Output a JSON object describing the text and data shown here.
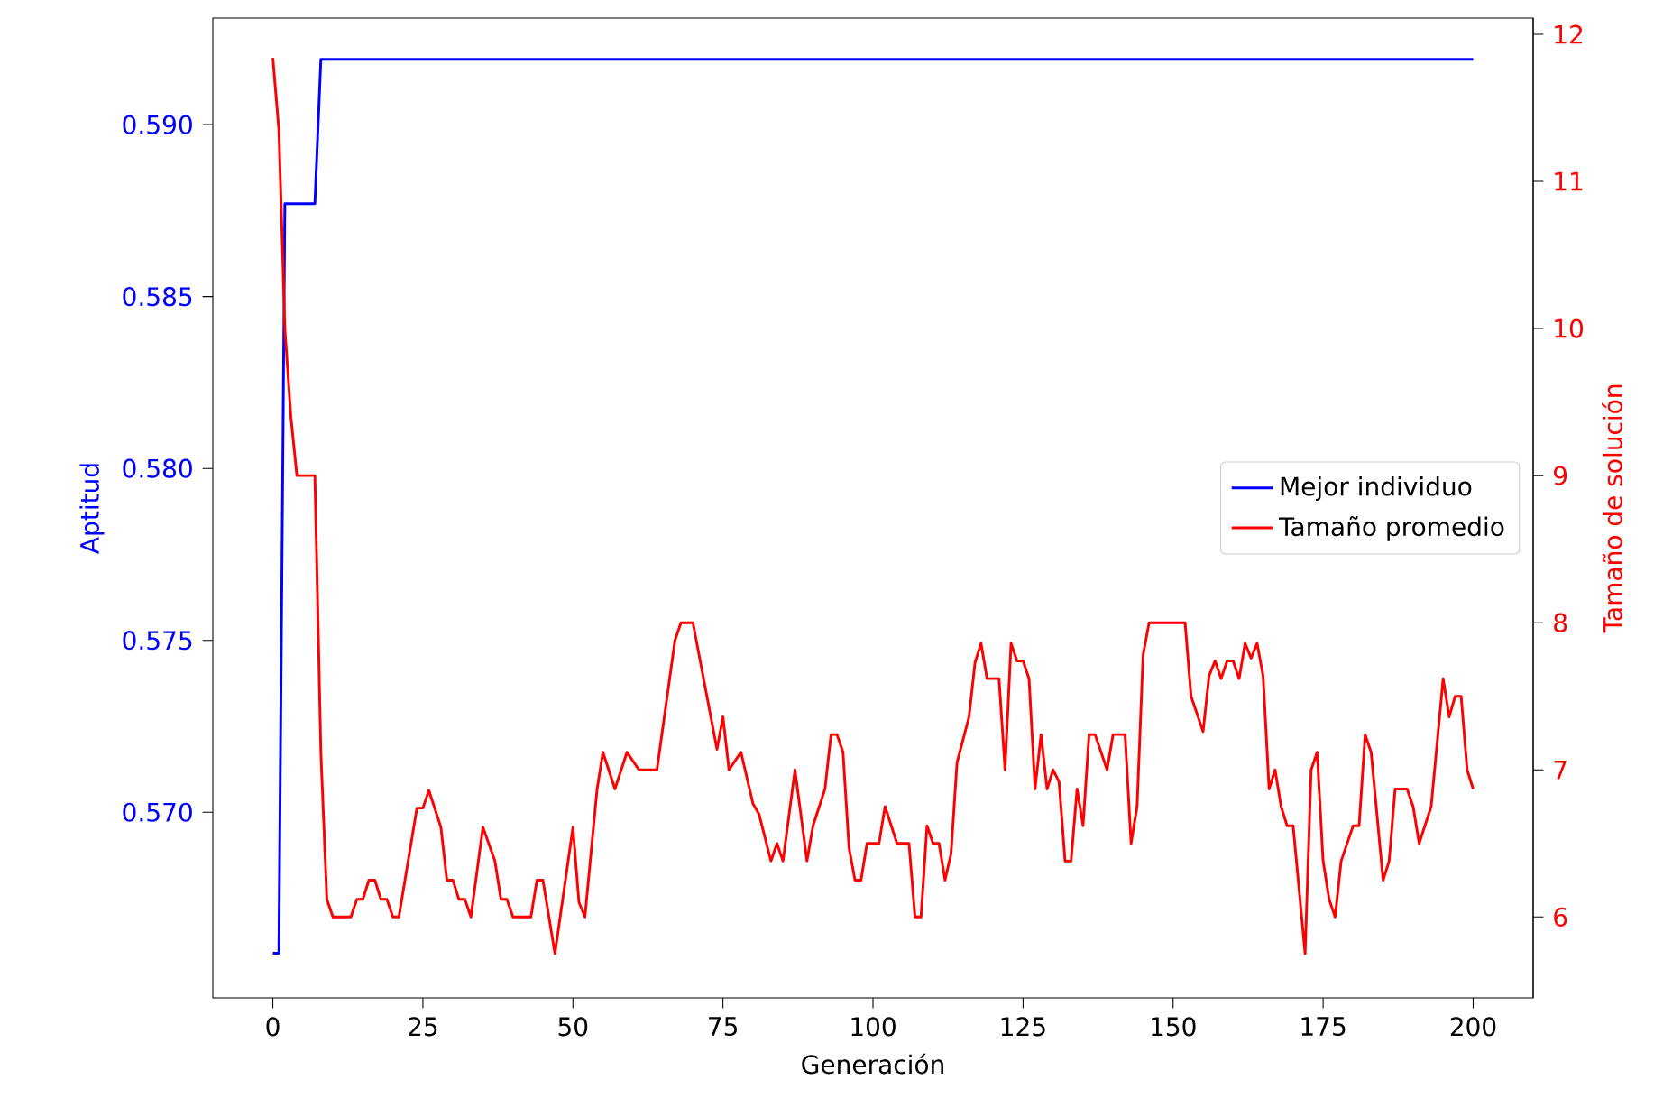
{
  "chart_data": {
    "type": "line",
    "xlabel": "Generación",
    "ylabel": "Aptitud",
    "y2label": "Tamaño de solución",
    "xlim": [
      -10,
      210
    ],
    "xticks": [
      0,
      25,
      50,
      75,
      100,
      125,
      150,
      175,
      200
    ],
    "ylim": [
      0.5646,
      0.5931
    ],
    "yticks": [
      {
        "value": 0.57,
        "label": "0.570"
      },
      {
        "value": 0.575,
        "label": "0.575"
      },
      {
        "value": 0.58,
        "label": "0.580"
      },
      {
        "value": 0.585,
        "label": "0.585"
      },
      {
        "value": 0.59,
        "label": "0.590"
      }
    ],
    "y2lim": [
      5.45,
      12.11
    ],
    "y2ticks": [
      6,
      7,
      8,
      9,
      10,
      11,
      12
    ],
    "legend": "right",
    "series": [
      {
        "name": "Mejor individuo",
        "color": "#0000ff",
        "axis": "y",
        "x": [
          0,
          1,
          2,
          7,
          8,
          200
        ],
        "values": [
          0.5659,
          0.5659,
          0.5877,
          0.5877,
          0.5919,
          0.5919
        ]
      },
      {
        "name": "Tamaño promedio",
        "color": "#ff0000",
        "axis": "y2",
        "x": [
          0,
          1,
          2,
          3,
          4,
          7,
          8,
          9,
          10,
          13,
          14,
          15,
          16,
          17,
          18,
          19,
          20,
          21,
          24,
          25,
          26,
          28,
          29,
          30,
          31,
          32,
          33,
          35,
          37,
          38,
          39,
          40,
          43,
          44,
          45,
          47,
          50,
          51,
          52,
          54,
          55,
          57,
          59,
          61,
          64,
          67,
          68,
          70,
          74,
          75,
          76,
          78,
          80,
          81,
          83,
          84,
          85,
          87,
          89,
          90,
          92,
          93,
          94,
          95,
          96,
          97,
          98,
          99,
          101,
          102,
          104,
          106,
          107,
          108,
          109,
          110,
          111,
          112,
          113,
          114,
          116,
          117,
          118,
          119,
          121,
          122,
          123,
          124,
          125,
          126,
          127,
          128,
          129,
          130,
          131,
          132,
          133,
          134,
          135,
          136,
          137,
          139,
          140,
          142,
          143,
          144,
          145,
          146,
          152,
          153,
          155,
          156,
          157,
          158,
          159,
          160,
          161,
          162,
          163,
          164,
          165,
          166,
          167,
          168,
          169,
          170,
          172,
          173,
          174,
          175,
          176,
          177,
          178,
          180,
          181,
          182,
          183,
          185,
          186,
          187,
          189,
          190,
          191,
          193,
          195,
          196,
          197,
          198,
          199,
          200
        ],
        "values": [
          11.84,
          11.35,
          10.0,
          9.4,
          9.0,
          9.0,
          7.12,
          6.12,
          6.0,
          6.0,
          6.12,
          6.12,
          6.25,
          6.25,
          6.12,
          6.12,
          6.0,
          6.0,
          6.74,
          6.74,
          6.86,
          6.61,
          6.25,
          6.25,
          6.12,
          6.12,
          6.0,
          6.61,
          6.38,
          6.12,
          6.12,
          6.0,
          6.0,
          6.25,
          6.25,
          5.75,
          6.61,
          6.1,
          6.0,
          6.86,
          7.12,
          6.87,
          7.12,
          7.0,
          7.0,
          7.88,
          8.0,
          8.0,
          7.14,
          7.36,
          7.0,
          7.12,
          6.77,
          6.7,
          6.38,
          6.5,
          6.38,
          7.0,
          6.38,
          6.62,
          6.87,
          7.24,
          7.24,
          7.12,
          6.47,
          6.25,
          6.25,
          6.5,
          6.5,
          6.75,
          6.5,
          6.5,
          6.0,
          6.0,
          6.62,
          6.5,
          6.5,
          6.25,
          6.43,
          7.05,
          7.36,
          7.73,
          7.86,
          7.62,
          7.62,
          7.0,
          7.86,
          7.74,
          7.74,
          7.62,
          6.87,
          7.24,
          6.87,
          7.0,
          6.92,
          6.38,
          6.38,
          6.87,
          6.62,
          7.24,
          7.24,
          7.0,
          7.24,
          7.24,
          6.5,
          6.75,
          7.78,
          8.0,
          8.0,
          7.5,
          7.26,
          7.64,
          7.74,
          7.62,
          7.74,
          7.74,
          7.62,
          7.86,
          7.76,
          7.86,
          7.64,
          6.87,
          7.0,
          6.75,
          6.62,
          6.62,
          5.75,
          7.0,
          7.12,
          6.38,
          6.12,
          6.0,
          6.38,
          6.62,
          6.62,
          7.24,
          7.12,
          6.25,
          6.38,
          6.87,
          6.87,
          6.75,
          6.5,
          6.75,
          7.62,
          7.36,
          7.5,
          7.5,
          7.0,
          6.87
        ]
      }
    ]
  }
}
